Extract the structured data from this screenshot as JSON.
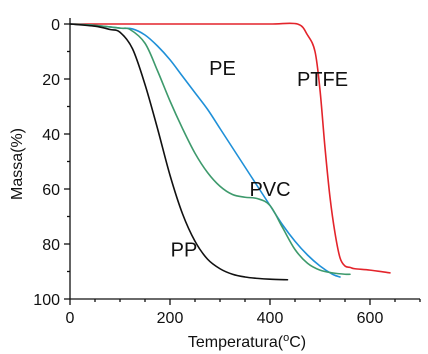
{
  "chart_data": {
    "type": "line",
    "title": "",
    "xlabel": "Temperatura(°C)",
    "xlabel_main": "Temperatura(",
    "xlabel_sup": "o",
    "xlabel_end": "C)",
    "ylabel": "Massa(%)",
    "xlim": [
      0,
      700
    ],
    "ylim": [
      0,
      100
    ],
    "y_inverted": true,
    "grid": false,
    "legend": "none",
    "x_ticks": [
      0,
      200,
      400,
      600
    ],
    "y_ticks": [
      0,
      20,
      40,
      60,
      80,
      100
    ],
    "x_tick_labels": [
      "0",
      "200",
      "400",
      "600"
    ],
    "y_tick_labels": [
      "0",
      "20",
      "40",
      "60",
      "80",
      "100"
    ],
    "series": [
      {
        "name": "PTFE",
        "color": "#e3242b",
        "label_at": [
          505,
          20
        ],
        "x": [
          0,
          100,
          200,
          300,
          400,
          455,
          475,
          490,
          500,
          510,
          520,
          530,
          540,
          550,
          560,
          570,
          600,
          640
        ],
        "y": [
          0,
          0,
          0,
          0,
          0,
          0,
          4,
          10,
          24,
          45,
          63,
          76,
          85,
          88,
          88.5,
          89,
          89.5,
          90.5
        ]
      },
      {
        "name": "PE",
        "color": "#1f90d8",
        "label_at": [
          305,
          16
        ],
        "x": [
          0,
          50,
          100,
          125,
          150,
          175,
          200,
          225,
          250,
          275,
          300,
          325,
          350,
          375,
          400,
          425,
          450,
          475,
          500,
          525,
          540
        ],
        "y": [
          0,
          0.5,
          1.5,
          1.8,
          4,
          8,
          13,
          19,
          25,
          31,
          38,
          45,
          52,
          59,
          66,
          73,
          79,
          84,
          88,
          91,
          92
        ]
      },
      {
        "name": "PVC",
        "color": "#3e9a6c",
        "label_at": [
          400,
          60
        ],
        "x": [
          0,
          50,
          100,
          120,
          150,
          175,
          200,
          225,
          250,
          275,
          300,
          325,
          350,
          375,
          400,
          425,
          450,
          475,
          500,
          525,
          550,
          560
        ],
        "y": [
          0,
          0.5,
          1.5,
          2,
          7,
          17,
          28,
          38,
          47,
          54,
          59,
          62,
          63,
          63.5,
          66,
          74,
          82,
          87,
          89.5,
          90.5,
          91,
          91
        ]
      },
      {
        "name": "PP",
        "color": "#111111",
        "label_at": [
          228,
          82
        ],
        "x": [
          0,
          50,
          80,
          100,
          125,
          150,
          175,
          200,
          225,
          250,
          275,
          300,
          325,
          350,
          375,
          400,
          435
        ],
        "y": [
          0,
          0.8,
          2,
          3,
          9,
          22,
          38,
          55,
          69,
          79,
          85.5,
          89,
          91,
          92,
          92.5,
          92.8,
          93
        ]
      }
    ]
  }
}
